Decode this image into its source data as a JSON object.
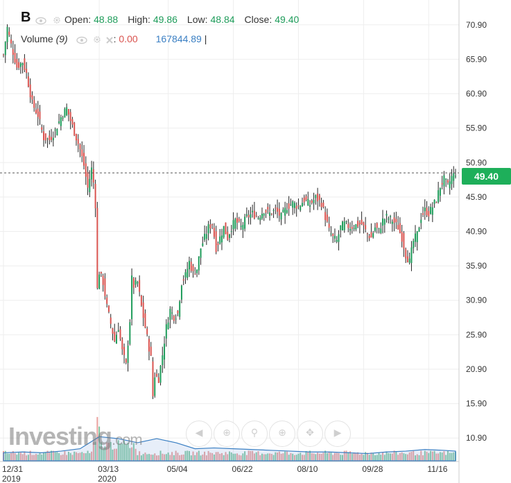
{
  "header": {
    "symbol": "B",
    "open_label": "Open:",
    "open_value": "48.88",
    "high_label": "High:",
    "high_value": "49.86",
    "low_label": "Low:",
    "low_value": "48.84",
    "close_label": "Close:",
    "close_value": "49.40"
  },
  "volume": {
    "label": "Volume",
    "period": "(9)",
    "colon": ":",
    "value": "0.00",
    "ma_value": "167844.89",
    "cursor": "|"
  },
  "last_price": "49.40",
  "watermark": {
    "brand": "Investing",
    "suffix": ".com"
  },
  "nav_buttons": [
    "zoom-out-icon",
    "zoom-in-icon",
    "reset-icon",
    "pan-icon",
    "scroll-right-icon"
  ],
  "colors": {
    "up": "#1e9c5a",
    "down": "#d9534f",
    "volume_ma": "#3a7fc3",
    "badge": "#1eaf5a"
  },
  "chart_data": {
    "type": "candlestick",
    "title": "",
    "xlabel": "",
    "ylabel": "",
    "ylim": [
      8.0,
      73.5
    ],
    "yticks": [
      "70.90",
      "65.90",
      "60.90",
      "55.90",
      "50.90",
      "45.90",
      "40.90",
      "35.90",
      "30.90",
      "25.90",
      "20.90",
      "15.90",
      "10.90"
    ],
    "xticks": [
      {
        "label": "12/31",
        "sublabel": "2019",
        "index": 0
      },
      {
        "label": "03/13",
        "sublabel": "2020",
        "index": 50
      },
      {
        "label": "05/04",
        "sublabel": "",
        "index": 86
      },
      {
        "label": "06/22",
        "sublabel": "",
        "index": 120
      },
      {
        "label": "08/10",
        "sublabel": "",
        "index": 154
      },
      {
        "label": "09/28",
        "sublabel": "",
        "index": 188
      },
      {
        "label": "11/16",
        "sublabel": "",
        "index": 222
      }
    ],
    "current_price": 49.4,
    "anchors": [
      [
        0,
        66.5
      ],
      [
        2,
        70.5
      ],
      [
        4,
        68.0
      ],
      [
        7,
        64.8
      ],
      [
        10,
        65.5
      ],
      [
        12,
        63.8
      ],
      [
        15,
        59.5
      ],
      [
        18,
        57.8
      ],
      [
        21,
        54.5
      ],
      [
        24,
        54.2
      ],
      [
        27,
        55.5
      ],
      [
        30,
        57.5
      ],
      [
        33,
        58.8
      ],
      [
        35,
        57.0
      ],
      [
        38,
        54.5
      ],
      [
        40,
        52.8
      ],
      [
        42,
        50.5
      ],
      [
        44,
        47.2
      ],
      [
        46,
        50.0
      ],
      [
        47,
        48.0
      ],
      [
        48,
        44.8
      ],
      [
        49,
        32.5
      ],
      [
        50,
        35.0
      ],
      [
        52,
        33.5
      ],
      [
        54,
        30.0
      ],
      [
        56,
        27.5
      ],
      [
        58,
        25.0
      ],
      [
        60,
        27.0
      ],
      [
        62,
        23.5
      ],
      [
        64,
        21.5
      ],
      [
        66,
        28.0
      ],
      [
        67,
        34.0
      ],
      [
        68,
        33.0
      ],
      [
        70,
        33.5
      ],
      [
        72,
        30.0
      ],
      [
        74,
        27.0
      ],
      [
        76,
        24.0
      ],
      [
        77,
        22.5
      ],
      [
        78,
        17.0
      ],
      [
        79,
        20.0
      ],
      [
        81,
        19.5
      ],
      [
        83,
        23.0
      ],
      [
        85,
        27.0
      ],
      [
        87,
        29.5
      ],
      [
        89,
        28.5
      ],
      [
        91,
        29.0
      ],
      [
        93,
        33.5
      ],
      [
        95,
        34.5
      ],
      [
        97,
        36.5
      ],
      [
        99,
        34.8
      ],
      [
        101,
        35.5
      ],
      [
        103,
        38.5
      ],
      [
        105,
        40.0
      ],
      [
        107,
        41.5
      ],
      [
        109,
        42.0
      ],
      [
        111,
        38.5
      ],
      [
        113,
        40.0
      ],
      [
        115,
        41.5
      ],
      [
        117,
        40.0
      ],
      [
        119,
        41.5
      ],
      [
        121,
        42.5
      ],
      [
        124,
        41.5
      ],
      [
        127,
        43.0
      ],
      [
        130,
        43.5
      ],
      [
        133,
        43.0
      ],
      [
        136,
        44.0
      ],
      [
        139,
        43.5
      ],
      [
        142,
        44.0
      ],
      [
        145,
        43.0
      ],
      [
        148,
        44.5
      ],
      [
        151,
        45.0
      ],
      [
        154,
        44.5
      ],
      [
        157,
        45.5
      ],
      [
        160,
        44.8
      ],
      [
        163,
        45.8
      ],
      [
        166,
        45.0
      ],
      [
        168,
        43.0
      ],
      [
        170,
        41.0
      ],
      [
        172,
        40.0
      ],
      [
        174,
        39.5
      ],
      [
        176,
        41.5
      ],
      [
        178,
        42.0
      ],
      [
        181,
        41.5
      ],
      [
        184,
        41.8
      ],
      [
        187,
        42.0
      ],
      [
        190,
        40.5
      ],
      [
        192,
        40.0
      ],
      [
        194,
        41.5
      ],
      [
        196,
        41.0
      ],
      [
        198,
        42.5
      ],
      [
        200,
        43.0
      ],
      [
        203,
        42.5
      ],
      [
        206,
        41.5
      ],
      [
        208,
        40.0
      ],
      [
        210,
        37.5
      ],
      [
        212,
        36.5
      ],
      [
        214,
        39.5
      ],
      [
        216,
        40.5
      ],
      [
        218,
        43.0
      ],
      [
        220,
        44.0
      ],
      [
        222,
        43.5
      ],
      [
        224,
        44.5
      ],
      [
        226,
        45.5
      ],
      [
        228,
        47.5
      ],
      [
        230,
        48.5
      ],
      [
        232,
        47.5
      ],
      [
        234,
        48.8
      ],
      [
        236,
        49.4
      ]
    ],
    "volume_ma": [
      [
        0,
        0.2
      ],
      [
        10,
        0.22
      ],
      [
        20,
        0.2
      ],
      [
        30,
        0.24
      ],
      [
        40,
        0.3
      ],
      [
        50,
        0.6
      ],
      [
        60,
        0.55
      ],
      [
        70,
        0.45
      ],
      [
        80,
        0.55
      ],
      [
        90,
        0.45
      ],
      [
        100,
        0.3
      ],
      [
        110,
        0.32
      ],
      [
        120,
        0.3
      ],
      [
        130,
        0.28
      ],
      [
        140,
        0.26
      ],
      [
        150,
        0.24
      ],
      [
        160,
        0.22
      ],
      [
        170,
        0.22
      ],
      [
        180,
        0.2
      ],
      [
        190,
        0.18
      ],
      [
        200,
        0.22
      ],
      [
        210,
        0.24
      ],
      [
        220,
        0.28
      ],
      [
        230,
        0.26
      ],
      [
        236,
        0.24
      ]
    ]
  }
}
